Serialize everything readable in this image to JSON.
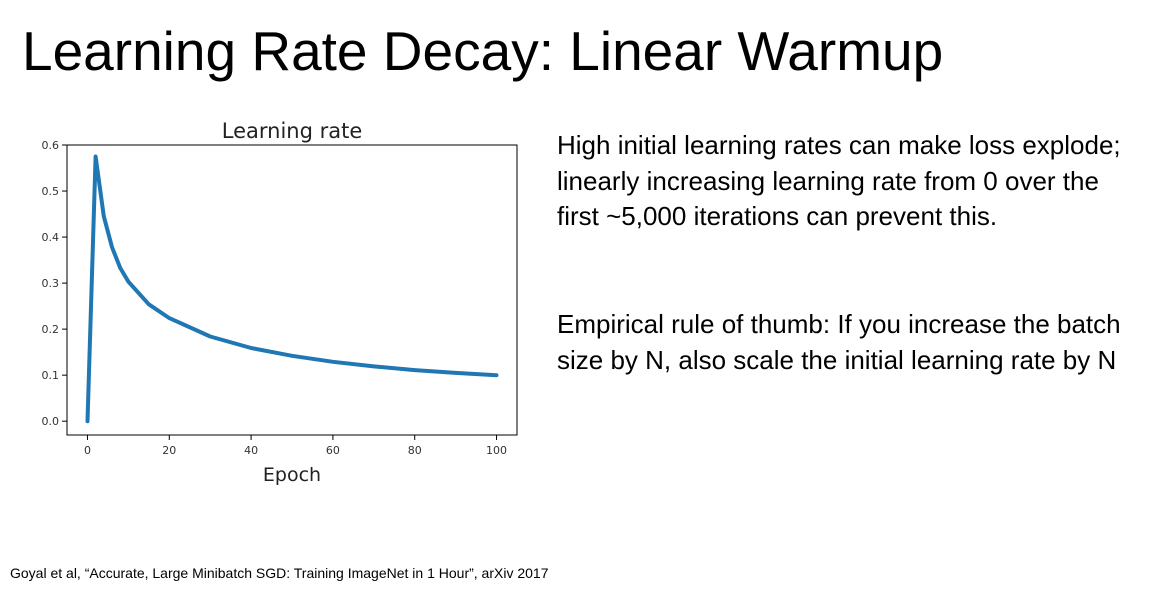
{
  "slide": {
    "title": "Learning Rate Decay: Linear Warmup",
    "paragraphs": [
      "High initial learning rates can make loss explode; linearly increasing learning rate from 0 over the first ~5,000 iterations can prevent this.",
      "Empirical rule of thumb: If you increase the batch size by N, also scale the initial learning rate by N"
    ],
    "citation": "Goyal et al, “Accurate, Large Minibatch SGD: Training ImageNet in 1 Hour”, arXiv 2017"
  },
  "chart_data": {
    "type": "line",
    "title": "Learning rate",
    "xlabel": "Epoch",
    "ylabel": "",
    "xlim": [
      -5,
      105
    ],
    "ylim": [
      -0.03,
      0.6
    ],
    "xticks": [
      0,
      20,
      40,
      60,
      80,
      100
    ],
    "yticks": [
      0.0,
      0.1,
      0.2,
      0.3,
      0.4,
      0.5,
      0.6
    ],
    "xtick_labels": [
      "0",
      "20",
      "40",
      "60",
      "80",
      "100"
    ],
    "ytick_labels": [
      "0.0",
      "0.1",
      "0.2",
      "0.3",
      "0.4",
      "0.5",
      "0.6"
    ],
    "grid": false,
    "line_color": "#1f77b4",
    "series": [
      {
        "x": [
          0,
          2,
          4,
          6,
          8,
          10,
          15,
          20,
          30,
          40,
          50,
          60,
          70,
          80,
          90,
          100
        ],
        "values": [
          0.0,
          0.575,
          0.445,
          0.378,
          0.333,
          0.303,
          0.254,
          0.224,
          0.184,
          0.159,
          0.142,
          0.129,
          0.119,
          0.111,
          0.105,
          0.1
        ]
      }
    ]
  }
}
